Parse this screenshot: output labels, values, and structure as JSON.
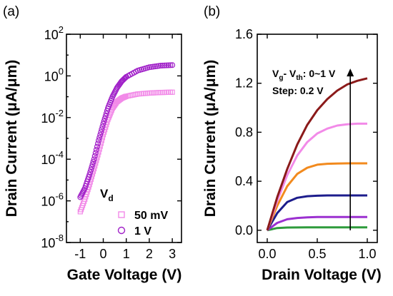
{
  "chart_data": [
    {
      "panel_label": "(a)",
      "type": "scatter",
      "xlabel": "Gate Voltage (V)",
      "ylabel": "Drain Current (μA/μm)",
      "yscale": "log",
      "xlim": [
        -1.6,
        3.4
      ],
      "ylim": [
        1e-08,
        100
      ],
      "xticks": [
        -1,
        0,
        1,
        2,
        3
      ],
      "xtick_labels": [
        "-1",
        "0",
        "1",
        "2",
        "3"
      ],
      "yticks": [
        1e-08,
        1e-06,
        0.0001,
        0.01,
        1,
        100
      ],
      "ytick_labels": [
        {
          "base": "10",
          "exp": "-8"
        },
        {
          "base": "10",
          "exp": "-6"
        },
        {
          "base": "10",
          "exp": "-4"
        },
        {
          "base": "10",
          "exp": "-2"
        },
        {
          "base": "10",
          "exp": "0"
        },
        {
          "base": "10",
          "exp": "2"
        }
      ],
      "legend": {
        "title_main": "V",
        "title_sub": "d",
        "position": "bottom-right"
      },
      "series": [
        {
          "name": "50 mV",
          "marker": "square",
          "color": "#f28ae8",
          "x": [
            -1.0,
            -0.8,
            -0.6,
            -0.4,
            -0.2,
            0.0,
            0.2,
            0.4,
            0.6,
            0.8,
            1.0,
            1.5,
            2.0,
            2.5,
            3.0
          ],
          "y": [
            3e-07,
            1.2e-06,
            6e-06,
            3.5e-05,
            0.00022,
            0.0015,
            0.008,
            0.028,
            0.058,
            0.085,
            0.105,
            0.135,
            0.15,
            0.16,
            0.165
          ]
        },
        {
          "name": "1 V",
          "marker": "circle",
          "color": "#a020c8",
          "x": [
            -1.0,
            -0.8,
            -0.6,
            -0.4,
            -0.2,
            0.0,
            0.2,
            0.4,
            0.6,
            0.8,
            1.0,
            1.5,
            2.0,
            2.5,
            3.0
          ],
          "y": [
            1.5e-06,
            4e-06,
            1.8e-05,
            0.0001,
            0.0008,
            0.005,
            0.028,
            0.1,
            0.27,
            0.55,
            0.9,
            1.8,
            2.6,
            3.1,
            3.3
          ]
        }
      ]
    },
    {
      "panel_label": "(b)",
      "type": "line",
      "xlabel": "Drain Voltage (V)",
      "ylabel": "Drain Current (μA/μm)",
      "xlim": [
        -0.1,
        1.1
      ],
      "ylim": [
        -0.1,
        1.6
      ],
      "xticks": [
        0,
        0.5,
        1.0
      ],
      "xtick_labels": [
        "0.0",
        "0.5",
        "1.0"
      ],
      "yticks": [
        0,
        0.4,
        0.8,
        1.2,
        1.6
      ],
      "ytick_labels": [
        "0.0",
        "0.4",
        "0.8",
        "1.2",
        "1.6"
      ],
      "annotation": {
        "line1_a": "V",
        "line1_a_sub": "g",
        "line1_b": "- V",
        "line1_b_sub": "th",
        "line1_c": ": 0~1 V",
        "line2": "Step: 0.2 V"
      },
      "arrow": {
        "x": 0.83,
        "from_y": 0.0,
        "to_y": 1.32
      },
      "series": [
        {
          "color": "#2e9b3c",
          "x": [
            0,
            0.1,
            0.2,
            0.3,
            0.4,
            0.5,
            0.6,
            0.7,
            0.8,
            0.9,
            1.0
          ],
          "y": [
            0,
            0.018,
            0.022,
            0.023,
            0.024,
            0.024,
            0.024,
            0.024,
            0.024,
            0.024,
            0.024
          ]
        },
        {
          "color": "#9b30d0",
          "x": [
            0,
            0.1,
            0.2,
            0.3,
            0.4,
            0.5,
            0.6,
            0.7,
            0.8,
            0.9,
            1.0
          ],
          "y": [
            0,
            0.06,
            0.09,
            0.1,
            0.105,
            0.108,
            0.108,
            0.108,
            0.108,
            0.108,
            0.108
          ]
        },
        {
          "color": "#1c1c8c",
          "x": [
            0,
            0.1,
            0.2,
            0.3,
            0.4,
            0.5,
            0.6,
            0.7,
            0.8,
            0.9,
            1.0
          ],
          "y": [
            0,
            0.14,
            0.23,
            0.265,
            0.278,
            0.282,
            0.284,
            0.284,
            0.284,
            0.284,
            0.284
          ]
        },
        {
          "color": "#f28a1e",
          "x": [
            0,
            0.1,
            0.2,
            0.3,
            0.4,
            0.5,
            0.6,
            0.7,
            0.8,
            0.9,
            1.0
          ],
          "y": [
            0,
            0.2,
            0.36,
            0.46,
            0.51,
            0.535,
            0.543,
            0.545,
            0.546,
            0.546,
            0.546
          ]
        },
        {
          "color": "#f28ae8",
          "x": [
            0,
            0.1,
            0.2,
            0.3,
            0.4,
            0.5,
            0.6,
            0.7,
            0.8,
            0.9,
            1.0
          ],
          "y": [
            0,
            0.24,
            0.45,
            0.61,
            0.72,
            0.79,
            0.83,
            0.855,
            0.865,
            0.87,
            0.87
          ]
        },
        {
          "color": "#8b1a1a",
          "x": [
            0,
            0.1,
            0.2,
            0.3,
            0.4,
            0.5,
            0.6,
            0.7,
            0.8,
            0.9,
            1.0
          ],
          "y": [
            0,
            0.27,
            0.5,
            0.7,
            0.86,
            0.98,
            1.07,
            1.14,
            1.19,
            1.22,
            1.24
          ]
        }
      ]
    }
  ]
}
